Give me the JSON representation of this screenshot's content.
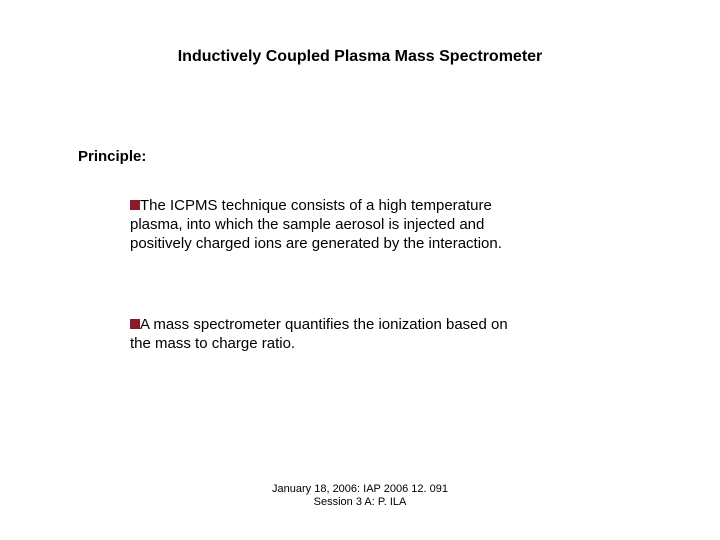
{
  "title": "Inductively Coupled Plasma Mass Spectrometer",
  "principle_label": "Principle:",
  "bullets": [
    "The ICPMS technique consists of a high temperature plasma, into which the sample aerosol is injected and positively charged ions are generated by the interaction.",
    "A mass spectrometer quantifies the ionization based on the mass to charge ratio."
  ],
  "footer_line1": "January 18, 2006: IAP 2006 12. 091",
  "footer_line2": "Session 3 A: P. ILA",
  "bullet_color": "#8b1a2b",
  "text_color": "#000000",
  "background_color": "#ffffff",
  "title_fontsize": 16,
  "body_fontsize": 15,
  "footer_fontsize": 11
}
